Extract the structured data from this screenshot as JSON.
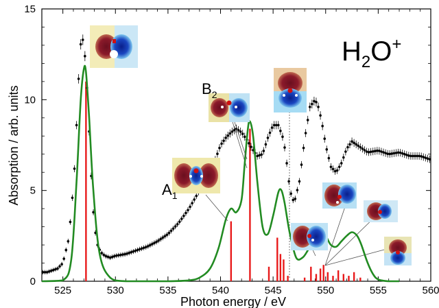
{
  "chart_data": {
    "type": "line",
    "title": "H2O+",
    "title_main": "H",
    "title_sub": "2",
    "title_rest": "O",
    "title_sup": "+",
    "xlabel": "Photon energy / eV",
    "ylabel": "Absorption / arb. units",
    "xlim": [
      523,
      560
    ],
    "ylim": [
      0,
      15
    ],
    "xticks": [
      525,
      530,
      535,
      540,
      545,
      550,
      555,
      560
    ],
    "yticks": [
      0,
      5,
      10,
      15
    ],
    "grid": false,
    "annotations": [
      {
        "id": "A1",
        "main": "A",
        "sub": "1",
        "x": 541.0,
        "y": 3.4
      },
      {
        "id": "B2",
        "main": "B",
        "sub": "2",
        "x": 542.8,
        "y": 8.5
      }
    ],
    "colors": {
      "experiment": "#000000",
      "theory": "#228b22",
      "sticks": "#e8191a",
      "leader": "#555555"
    },
    "series": [
      {
        "kind": "experiment",
        "x": [
          523.0,
          523.5,
          524.0,
          524.5,
          525.0,
          525.5,
          525.8,
          526.1,
          526.4,
          526.6,
          526.8,
          527.0,
          527.2,
          527.4,
          527.6,
          527.8,
          528.0,
          528.3,
          528.6,
          529.0,
          529.5,
          530.0,
          531.0,
          532.0,
          533.0,
          534.0,
          535.0,
          536.0,
          537.0,
          538.0,
          539.0,
          539.5,
          540.0,
          540.5,
          541.0,
          541.5,
          542.0,
          542.5,
          543.0,
          543.5,
          544.0,
          544.5,
          545.0,
          545.5,
          546.0,
          546.3,
          546.6,
          547.0,
          547.5,
          548.0,
          548.5,
          549.0,
          549.3,
          549.6,
          550.0,
          550.5,
          551.0,
          551.5,
          552.0,
          552.5,
          553.0,
          554.0,
          555.0,
          556.0,
          557.0,
          558.0,
          559.0,
          560.0
        ],
        "y": [
          0.5,
          0.5,
          0.6,
          0.7,
          1.0,
          2.2,
          3.8,
          6.2,
          9.8,
          12.5,
          13.6,
          13.0,
          11.8,
          9.5,
          7.0,
          4.6,
          3.0,
          2.0,
          1.6,
          1.4,
          1.3,
          1.4,
          1.5,
          1.7,
          1.9,
          2.2,
          2.6,
          3.2,
          4.0,
          5.0,
          6.0,
          6.7,
          7.5,
          7.9,
          8.2,
          8.4,
          8.2,
          7.8,
          7.3,
          6.9,
          7.0,
          7.9,
          8.6,
          8.6,
          7.8,
          6.5,
          5.0,
          4.3,
          5.5,
          7.8,
          9.6,
          10.0,
          9.6,
          8.9,
          7.5,
          6.3,
          6.0,
          6.5,
          7.3,
          7.7,
          7.5,
          7.1,
          7.2,
          7.0,
          7.1,
          6.9,
          6.9,
          6.7
        ]
      },
      {
        "kind": "theory",
        "x": [
          523.0,
          525.0,
          525.8,
          526.3,
          526.7,
          527.0,
          527.2,
          527.5,
          527.9,
          528.5,
          529.5,
          531.0,
          535.0,
          537.0,
          538.0,
          539.0,
          539.8,
          540.5,
          541.0,
          541.5,
          542.0,
          542.3,
          542.6,
          542.8,
          543.1,
          543.5,
          544.0,
          544.5,
          545.0,
          545.5,
          545.8,
          546.1,
          546.6,
          547.2,
          547.8,
          548.3,
          548.8,
          549.3,
          549.7,
          550.1,
          550.5,
          551.0,
          551.5,
          552.0,
          552.5,
          553.0,
          553.4,
          554.0,
          554.5,
          555.0,
          556.0,
          557.0
        ],
        "y": [
          0.0,
          0.05,
          1.2,
          5.5,
          10.0,
          11.7,
          11.5,
          9.0,
          5.0,
          1.5,
          0.2,
          0.0,
          0.0,
          0.05,
          0.2,
          0.7,
          1.8,
          3.4,
          4.0,
          3.8,
          4.5,
          6.5,
          8.4,
          8.8,
          8.0,
          5.5,
          3.0,
          2.6,
          3.6,
          4.9,
          5.0,
          4.3,
          2.6,
          1.3,
          1.3,
          1.7,
          2.2,
          2.6,
          2.7,
          2.4,
          2.0,
          1.9,
          2.2,
          2.5,
          2.7,
          2.5,
          2.0,
          1.0,
          0.4,
          0.1,
          0.0,
          0.0
        ]
      }
    ],
    "sticks": {
      "x": [
        527.2,
        541.0,
        542.8,
        544.6,
        545.4,
        545.7,
        546.0,
        546.4,
        548.0,
        548.6,
        549.1,
        549.5,
        549.8,
        550.2,
        550.7,
        551.2,
        551.7,
        552.2,
        552.7,
        553.3
      ],
      "y": [
        11.0,
        3.3,
        8.4,
        0.8,
        2.4,
        1.5,
        1.2,
        0.3,
        0.2,
        0.8,
        0.4,
        0.7,
        0.9,
        0.5,
        0.3,
        0.6,
        0.4,
        0.3,
        0.5,
        0.2
      ]
    }
  }
}
